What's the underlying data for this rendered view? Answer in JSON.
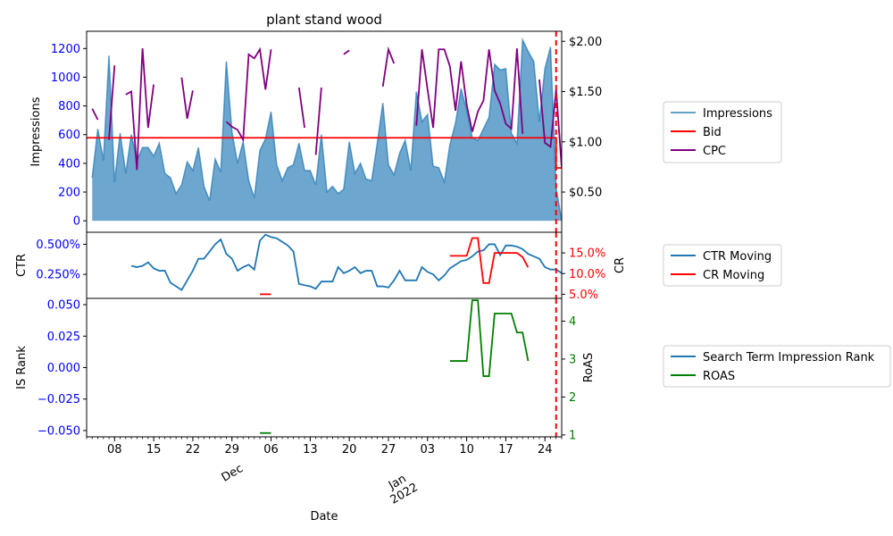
{
  "chart_data": {
    "type": "line",
    "title": "plant stand wood",
    "xlabel": "Date",
    "x_tick_labels": [
      "08",
      "15",
      "22",
      "29",
      "06",
      "13",
      "20",
      "27",
      "03",
      "10",
      "17",
      "24"
    ],
    "x_month_labels": [
      "Dec",
      "Jan\n2022"
    ],
    "x_start": "2021-11-03",
    "x_end": "2022-01-27",
    "reference_line_date": "2022-01-26",
    "colors": {
      "impressions": "#1f77b4",
      "bid": "#ff0000",
      "cpc": "#800080",
      "ctr": "#1f77b4",
      "cr": "#ff0000",
      "is_rank": "#1f77b4",
      "roas": "#008000",
      "left_ticks": "#0000ff",
      "right_cr_ticks": "#ff0000",
      "right_roas_ticks": "#008000",
      "reference_line": "#ff0000"
    },
    "panels": [
      {
        "name": "impressions-panel",
        "ylabel": "Impressions",
        "ylim": [
          -80,
          1320
        ],
        "y_ticks": [
          0,
          200,
          400,
          600,
          800,
          1000,
          1200
        ],
        "y_tick_labels": [
          "0",
          "200",
          "400",
          "600",
          "800",
          "1000",
          "1200"
        ],
        "right_ylim": [
          0.1,
          2.1
        ],
        "right_ticks": [
          0.5,
          1.0,
          1.5,
          2.0
        ],
        "right_tick_labels": [
          "$0.50",
          "$1.00",
          "$1.50",
          "$2.00"
        ],
        "series": [
          {
            "name": "Impressions",
            "kind": "area",
            "axis": "left",
            "values": [
              300,
              640,
              420,
              1150,
              270,
              610,
              330,
              600,
              420,
              510,
              510,
              450,
              540,
              330,
              300,
              190,
              250,
              410,
              350,
              510,
              240,
              140,
              430,
              340,
              1110,
              620,
              400,
              550,
              280,
              160,
              490,
              570,
              760,
              390,
              280,
              370,
              390,
              540,
              350,
              350,
              250,
              600,
              200,
              240,
              190,
              220,
              550,
              330,
              400,
              290,
              280,
              540,
              820,
              390,
              320,
              470,
              560,
              350,
              900,
              690,
              740,
              380,
              370,
              270,
              530,
              680,
              920,
              770,
              580,
              560,
              640,
              720,
              1090,
              1050,
              1060,
              610,
              540,
              1260,
              1180,
              1110,
              690,
              1060,
              1210,
              230,
              0
            ]
          },
          {
            "name": "Bid",
            "kind": "line",
            "axis": "right",
            "points": [
              [
                "2021-11-03",
                1.04
              ],
              [
                "2022-01-26",
                1.04
              ],
              [
                "2022-01-26",
                0.74
              ],
              [
                "2022-01-27",
                0.74
              ]
            ]
          },
          {
            "name": "CPC",
            "kind": "line",
            "axis": "right",
            "values": [
              1.33,
              1.22,
              null,
              1.02,
              1.76,
              null,
              1.47,
              1.5,
              0.72,
              1.93,
              1.14,
              1.57,
              null,
              null,
              null,
              null,
              1.64,
              1.23,
              1.51,
              null,
              null,
              null,
              null,
              null,
              1.2,
              1.15,
              1.12,
              1.02,
              1.87,
              1.83,
              1.92,
              1.52,
              1.92,
              null,
              null,
              null,
              null,
              1.54,
              1.14,
              null,
              0.87,
              1.54,
              null,
              null,
              null,
              1.87,
              1.91,
              null,
              null,
              null,
              null,
              null,
              1.55,
              1.92,
              1.78,
              null,
              null,
              null,
              1.16,
              1.92,
              1.52,
              1.14,
              1.92,
              1.92,
              1.75,
              1.31,
              1.8,
              1.37,
              1.1,
              1.3,
              1.41,
              1.92,
              1.51,
              1.38,
              1.18,
              1.13,
              1.93,
              1.08,
              null,
              null,
              1.62,
              0.99,
              0.95,
              1.52,
              0.74
            ]
          }
        ]
      },
      {
        "name": "ctr-panel",
        "ylabel": "CTR",
        "ylim": [
          0.0005,
          0.006
        ],
        "y_ticks": [
          0.0025,
          0.005
        ],
        "y_tick_labels": [
          "0.250%",
          "0.500%"
        ],
        "right_ylabel": "CR",
        "right_ylim": [
          0.04,
          0.2
        ],
        "right_ticks": [
          0.05,
          0.1,
          0.15
        ],
        "right_tick_labels": [
          "5.0%",
          "10.0%",
          "15.0%"
        ],
        "series": [
          {
            "name": "CTR Moving",
            "kind": "line",
            "axis": "left",
            "values": [
              null,
              null,
              null,
              null,
              null,
              null,
              null,
              0.0032,
              0.0031,
              0.0032,
              0.0035,
              0.003,
              0.0028,
              0.0028,
              0.0018,
              0.0015,
              0.0012,
              0.002,
              0.0028,
              0.0038,
              0.0038,
              0.0044,
              0.005,
              0.0054,
              0.0042,
              0.0038,
              0.0028,
              0.0031,
              0.0033,
              0.0029,
              0.0053,
              0.0058,
              0.0056,
              0.0055,
              0.0052,
              0.0049,
              0.0044,
              0.0017,
              0.0016,
              0.0015,
              0.0013,
              0.0019,
              0.0019,
              0.0019,
              0.0031,
              0.0026,
              0.0028,
              0.0031,
              0.0026,
              0.0028,
              0.0028,
              0.0015,
              0.0015,
              0.0014,
              0.002,
              0.0028,
              0.002,
              0.002,
              0.002,
              0.0031,
              0.0027,
              0.0025,
              0.002,
              0.0024,
              0.003,
              0.0033,
              0.0036,
              0.0037,
              0.004,
              0.0044,
              0.0045,
              0.005,
              0.005,
              0.0041,
              0.0049,
              0.0049,
              0.0048,
              0.0046,
              0.0042,
              0.004,
              0.0038,
              0.0031,
              0.0029,
              0.0029,
              0.0026
            ]
          },
          {
            "name": "CR Moving",
            "kind": "line",
            "axis": "right",
            "values": [
              null,
              null,
              null,
              null,
              null,
              null,
              null,
              null,
              null,
              null,
              null,
              null,
              null,
              null,
              null,
              null,
              null,
              null,
              null,
              null,
              null,
              null,
              null,
              null,
              null,
              null,
              null,
              null,
              null,
              null,
              0.05,
              0.05,
              0.05,
              null,
              null,
              null,
              null,
              null,
              null,
              null,
              null,
              null,
              null,
              null,
              null,
              null,
              null,
              null,
              null,
              null,
              null,
              null,
              null,
              null,
              null,
              null,
              null,
              null,
              null,
              null,
              null,
              null,
              null,
              null,
              0.143,
              0.143,
              0.143,
              0.143,
              0.186,
              0.186,
              0.077,
              0.077,
              0.15,
              0.15,
              0.15,
              0.15,
              0.15,
              0.14,
              0.115,
              null,
              null,
              null,
              null,
              null,
              null
            ]
          }
        ]
      },
      {
        "name": "is-rank-panel",
        "ylabel": "IS Rank",
        "ylim": [
          -0.055,
          0.055
        ],
        "y_ticks": [
          -0.05,
          -0.025,
          0.0,
          0.025,
          0.05
        ],
        "y_tick_labels": [
          "−0.050",
          "−0.025",
          "0.000",
          "0.025",
          "0.050"
        ],
        "right_ylabel": "RoAS",
        "right_ylim": [
          0.95,
          4.6
        ],
        "right_ticks": [
          1,
          2,
          3,
          4
        ],
        "right_tick_labels": [
          "1",
          "2",
          "3",
          "4"
        ],
        "series": [
          {
            "name": "Search Term Impression Rank",
            "kind": "line",
            "axis": "left",
            "values": []
          },
          {
            "name": "ROAS",
            "kind": "line",
            "axis": "right",
            "values": [
              null,
              null,
              null,
              null,
              null,
              null,
              null,
              null,
              null,
              null,
              null,
              null,
              null,
              null,
              null,
              null,
              null,
              null,
              null,
              null,
              null,
              null,
              null,
              null,
              null,
              null,
              null,
              null,
              null,
              null,
              1.05,
              1.05,
              1.05,
              null,
              null,
              null,
              null,
              null,
              null,
              null,
              null,
              null,
              null,
              null,
              null,
              null,
              null,
              null,
              null,
              null,
              null,
              null,
              null,
              null,
              null,
              null,
              null,
              null,
              null,
              null,
              null,
              null,
              null,
              null,
              2.95,
              2.95,
              2.95,
              2.95,
              4.55,
              4.55,
              2.55,
              2.55,
              4.2,
              4.2,
              4.2,
              4.2,
              3.7,
              3.7,
              2.95,
              null,
              null,
              null,
              null,
              null,
              null
            ]
          }
        ]
      }
    ],
    "legends": [
      {
        "name": "legend-impressions",
        "entries": [
          "Impressions",
          "Bid",
          "CPC"
        ],
        "colors": [
          "#1f77b4",
          "#ff0000",
          "#800080"
        ]
      },
      {
        "name": "legend-ctr",
        "entries": [
          "CTR Moving",
          "CR Moving"
        ],
        "colors": [
          "#1f77b4",
          "#ff0000"
        ]
      },
      {
        "name": "legend-is",
        "entries": [
          "Search Term Impression Rank",
          "ROAS"
        ],
        "colors": [
          "#1f77b4",
          "#008000"
        ]
      }
    ]
  }
}
